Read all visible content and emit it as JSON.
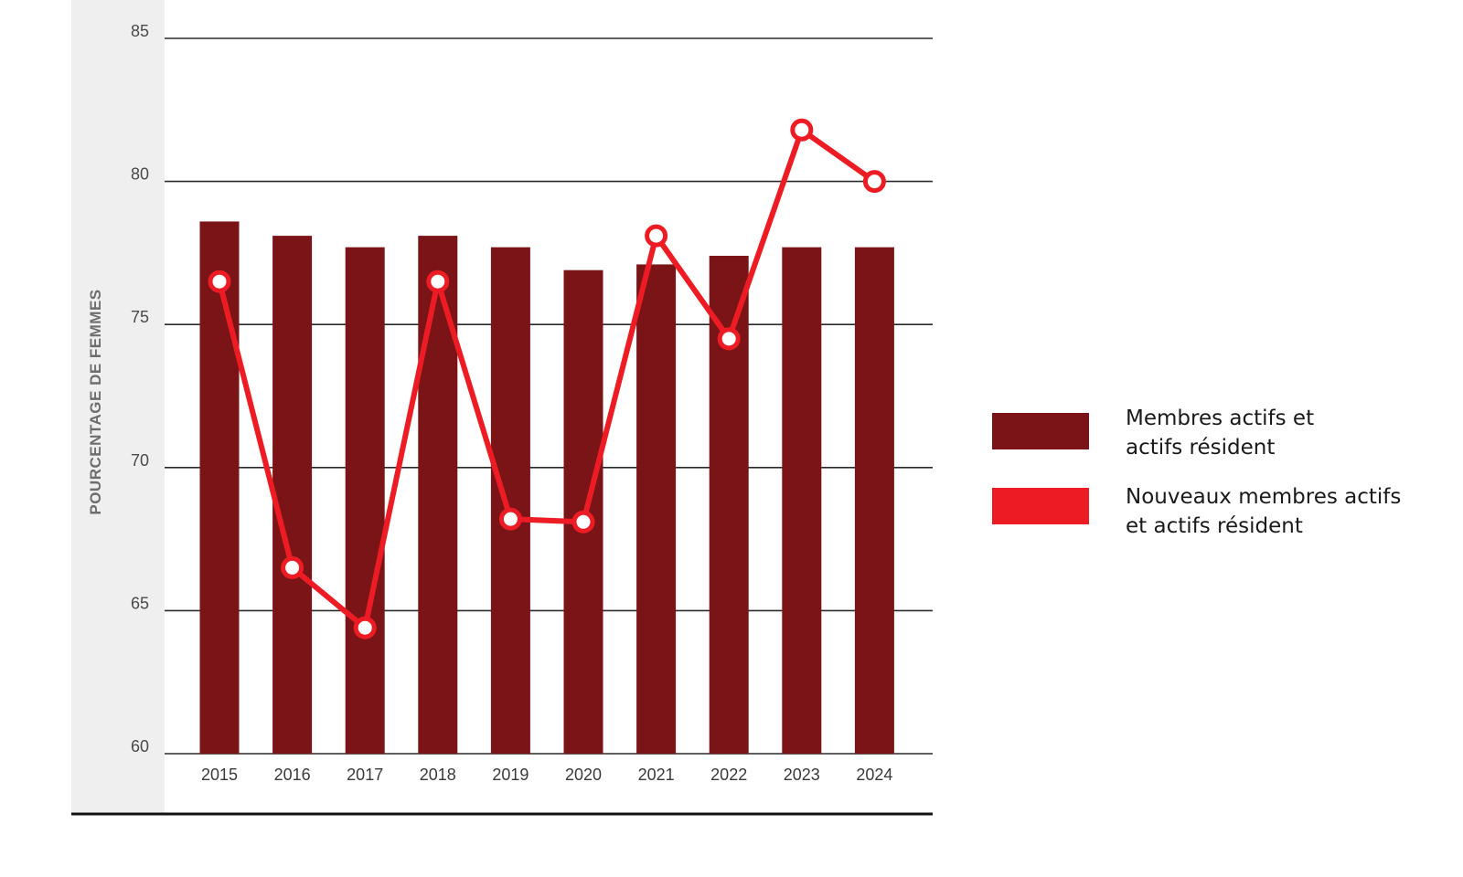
{
  "chart_data": {
    "type": "bar",
    "ylabel": "POURCENTAGE DE FEMMES",
    "xlabel": "",
    "ylim": [
      60,
      85
    ],
    "yticks": [
      60,
      65,
      70,
      75,
      80,
      85
    ],
    "grid": true,
    "legend_position": "right",
    "categories": [
      "2015",
      "2016",
      "2017",
      "2018",
      "2019",
      "2020",
      "2021",
      "2022",
      "2023",
      "2024"
    ],
    "series": [
      {
        "name": "Membres actifs et\nactifs résident",
        "type": "bar",
        "color": "#7b1416",
        "values": [
          78.6,
          78.1,
          77.7,
          78.1,
          77.7,
          76.9,
          77.1,
          77.4,
          77.7,
          77.7
        ]
      },
      {
        "name": "Nouveaux membres actifs\net actifs résident",
        "type": "line",
        "color": "#ed1c24",
        "values": [
          76.5,
          66.5,
          64.4,
          76.5,
          68.2,
          68.1,
          78.1,
          74.5,
          81.8,
          80.0
        ]
      }
    ]
  }
}
